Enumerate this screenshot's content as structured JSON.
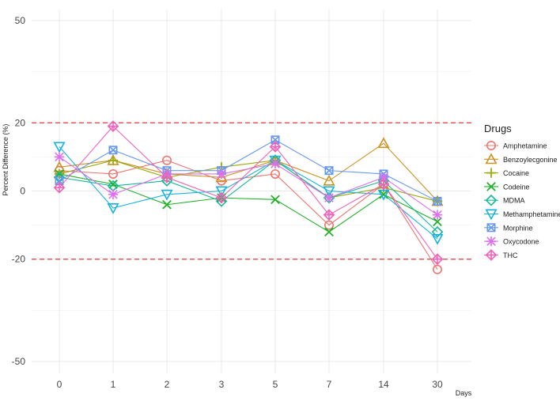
{
  "chart_data": {
    "type": "line",
    "title": "",
    "xlabel": "Days",
    "ylabel": "Percent Difference (%)",
    "x": [
      "0",
      "1",
      "2",
      "3",
      "5",
      "7",
      "14",
      "30"
    ],
    "ylim": [
      -50,
      50
    ],
    "yticks": [
      -50,
      -20,
      0,
      20,
      50
    ],
    "reference_lines": [
      20,
      -20
    ],
    "reference_color": "#e05050",
    "legend_title": "Drugs",
    "legend_position": "right",
    "grid": true,
    "series": [
      {
        "name": "Amphetamine",
        "marker": "circle",
        "color": "#f07570",
        "values": [
          6,
          5,
          9,
          3,
          5,
          -10,
          2,
          -23
        ]
      },
      {
        "name": "Benzoylecgonine",
        "marker": "triangle",
        "color": "#cc9320",
        "values": [
          7,
          9,
          5,
          4,
          9,
          3,
          14,
          -3
        ]
      },
      {
        "name": "Cocaine",
        "marker": "plus",
        "color": "#9aaa0a",
        "values": [
          5,
          9,
          4,
          7,
          9,
          -2,
          1,
          -3
        ]
      },
      {
        "name": "Codeine",
        "marker": "x",
        "color": "#22b22a",
        "values": [
          5,
          2,
          -4,
          -2,
          -2.5,
          -12,
          -1,
          -9
        ]
      },
      {
        "name": "MDMA",
        "marker": "diamond",
        "color": "#13b896",
        "values": [
          4,
          1.5,
          3,
          -3,
          9,
          -2,
          3,
          -12
        ]
      },
      {
        "name": "Methamphetamine",
        "marker": "triangle-down",
        "color": "#19b2e0",
        "values": [
          13,
          -5,
          -1,
          0,
          9,
          0,
          -1,
          -14
        ]
      },
      {
        "name": "Morphine",
        "marker": "square-cross",
        "color": "#6699ee",
        "values": [
          3,
          12,
          6,
          6,
          15,
          6,
          5,
          -3
        ]
      },
      {
        "name": "Oxycodone",
        "marker": "asterisk",
        "color": "#dd6fee",
        "values": [
          10,
          -1,
          5,
          5,
          8,
          -2,
          4,
          -7
        ]
      },
      {
        "name": "THC",
        "marker": "diamond-plus",
        "color": "#f062b8",
        "values": [
          1,
          19,
          4,
          -2,
          13,
          -7,
          2,
          -20
        ]
      }
    ]
  }
}
